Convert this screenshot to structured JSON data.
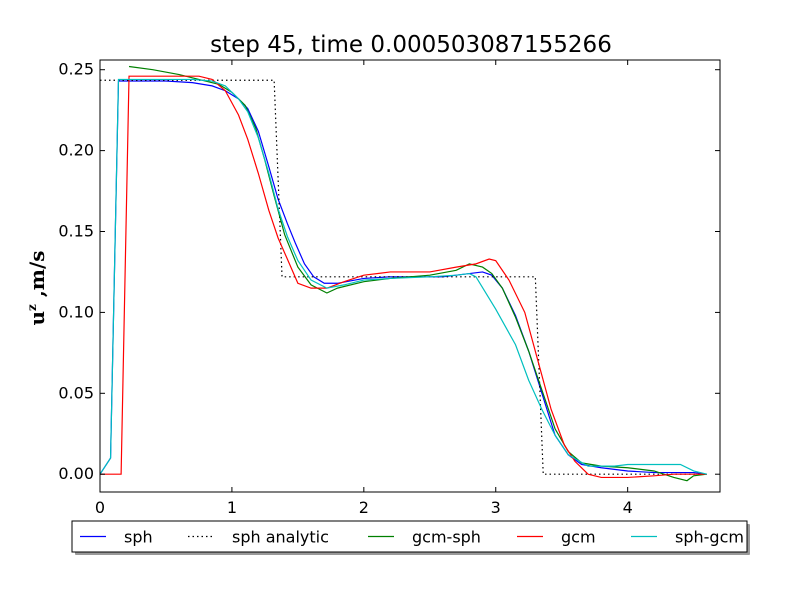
{
  "chart_data": {
    "type": "line",
    "title": "step 45, time 0.000503087155266",
    "xlabel": "",
    "ylabel": "u^z ,m/s",
    "ylabel_main": "u",
    "ylabel_sup": "z",
    "ylabel_rest": " ,m/s",
    "xlim": [
      0,
      4.7
    ],
    "ylim": [
      -0.011,
      0.256
    ],
    "xticks": [
      0,
      1,
      2,
      3,
      4
    ],
    "xtick_labels": [
      "0",
      "1",
      "2",
      "3",
      "4"
    ],
    "yticks": [
      0.0,
      0.05,
      0.1,
      0.15,
      0.2,
      0.25
    ],
    "ytick_labels": [
      "0.00",
      "0.05",
      "0.10",
      "0.15",
      "0.20",
      "0.25"
    ],
    "grid": false,
    "legend_placement": "bottom-center, outside plot",
    "series": [
      {
        "name": "sph",
        "color": "#0000ff",
        "style": "solid",
        "points": [
          [
            0,
            0
          ],
          [
            0.08,
            0.01
          ],
          [
            0.14,
            0.243
          ],
          [
            0.3,
            0.243
          ],
          [
            0.5,
            0.243
          ],
          [
            0.7,
            0.242
          ],
          [
            0.85,
            0.24
          ],
          [
            0.95,
            0.237
          ],
          [
            1.05,
            0.232
          ],
          [
            1.12,
            0.226
          ],
          [
            1.2,
            0.212
          ],
          [
            1.28,
            0.19
          ],
          [
            1.35,
            0.17
          ],
          [
            1.42,
            0.155
          ],
          [
            1.48,
            0.143
          ],
          [
            1.55,
            0.13
          ],
          [
            1.62,
            0.122
          ],
          [
            1.7,
            0.118
          ],
          [
            1.8,
            0.118
          ],
          [
            2.0,
            0.121
          ],
          [
            2.2,
            0.122
          ],
          [
            2.4,
            0.122
          ],
          [
            2.6,
            0.122
          ],
          [
            2.8,
            0.124
          ],
          [
            2.9,
            0.125
          ],
          [
            2.97,
            0.123
          ],
          [
            3.05,
            0.115
          ],
          [
            3.15,
            0.098
          ],
          [
            3.25,
            0.076
          ],
          [
            3.35,
            0.05
          ],
          [
            3.45,
            0.024
          ],
          [
            3.55,
            0.012
          ],
          [
            3.65,
            0.006
          ],
          [
            3.8,
            0.004
          ],
          [
            4.0,
            0.002
          ],
          [
            4.2,
            0.001
          ],
          [
            4.4,
            0.001
          ],
          [
            4.5,
            0.001
          ],
          [
            4.6,
            0.0
          ]
        ]
      },
      {
        "name": "sph analytic",
        "color": "#000000",
        "style": "dotted",
        "points": [
          [
            0,
            0.2435
          ],
          [
            1.32,
            0.2435
          ],
          [
            1.38,
            0.122
          ],
          [
            3.3,
            0.122
          ],
          [
            3.36,
            0.0
          ],
          [
            4.6,
            0.0
          ]
        ]
      },
      {
        "name": "gcm-sph",
        "color": "#008000",
        "style": "solid",
        "points": [
          [
            0.22,
            0.252
          ],
          [
            0.4,
            0.25
          ],
          [
            0.6,
            0.247
          ],
          [
            0.8,
            0.243
          ],
          [
            0.9,
            0.241
          ],
          [
            1.0,
            0.236
          ],
          [
            1.1,
            0.228
          ],
          [
            1.18,
            0.214
          ],
          [
            1.25,
            0.194
          ],
          [
            1.32,
            0.172
          ],
          [
            1.4,
            0.148
          ],
          [
            1.5,
            0.128
          ],
          [
            1.6,
            0.117
          ],
          [
            1.72,
            0.112
          ],
          [
            1.8,
            0.115
          ],
          [
            2.0,
            0.119
          ],
          [
            2.2,
            0.121
          ],
          [
            2.5,
            0.123
          ],
          [
            2.7,
            0.126
          ],
          [
            2.8,
            0.13
          ],
          [
            2.9,
            0.128
          ],
          [
            2.97,
            0.124
          ],
          [
            3.05,
            0.115
          ],
          [
            3.15,
            0.097
          ],
          [
            3.25,
            0.076
          ],
          [
            3.35,
            0.052
          ],
          [
            3.45,
            0.028
          ],
          [
            3.55,
            0.014
          ],
          [
            3.65,
            0.007
          ],
          [
            3.8,
            0.005
          ],
          [
            4.0,
            0.004
          ],
          [
            4.2,
            0.002
          ],
          [
            4.35,
            -0.002
          ],
          [
            4.45,
            -0.004
          ],
          [
            4.5,
            -0.001
          ],
          [
            4.6,
            0.0
          ]
        ]
      },
      {
        "name": "gcm",
        "color": "#ff0000",
        "style": "solid",
        "points": [
          [
            0,
            0
          ],
          [
            0.14,
            0.0
          ],
          [
            0.16,
            0.0
          ],
          [
            0.22,
            0.246
          ],
          [
            0.4,
            0.246
          ],
          [
            0.6,
            0.246
          ],
          [
            0.75,
            0.246
          ],
          [
            0.85,
            0.244
          ],
          [
            0.95,
            0.237
          ],
          [
            1.05,
            0.222
          ],
          [
            1.12,
            0.207
          ],
          [
            1.2,
            0.186
          ],
          [
            1.28,
            0.163
          ],
          [
            1.35,
            0.146
          ],
          [
            1.42,
            0.133
          ],
          [
            1.5,
            0.118
          ],
          [
            1.6,
            0.115
          ],
          [
            1.72,
            0.115
          ],
          [
            1.85,
            0.119
          ],
          [
            2.0,
            0.123
          ],
          [
            2.2,
            0.125
          ],
          [
            2.5,
            0.125
          ],
          [
            2.7,
            0.128
          ],
          [
            2.85,
            0.13
          ],
          [
            2.95,
            0.133
          ],
          [
            3.0,
            0.132
          ],
          [
            3.1,
            0.12
          ],
          [
            3.22,
            0.1
          ],
          [
            3.32,
            0.07
          ],
          [
            3.42,
            0.04
          ],
          [
            3.52,
            0.018
          ],
          [
            3.6,
            0.008
          ],
          [
            3.7,
            0.0
          ],
          [
            3.8,
            -0.002
          ],
          [
            4.0,
            -0.002
          ],
          [
            4.2,
            -0.001
          ],
          [
            4.35,
            0.0
          ],
          [
            4.6,
            0.0
          ]
        ]
      },
      {
        "name": "sph-gcm",
        "color": "#00bfbf",
        "style": "solid",
        "points": [
          [
            0,
            0
          ],
          [
            0.08,
            0.01
          ],
          [
            0.14,
            0.244
          ],
          [
            0.3,
            0.244
          ],
          [
            0.5,
            0.244
          ],
          [
            0.7,
            0.244
          ],
          [
            0.85,
            0.243
          ],
          [
            0.95,
            0.24
          ],
          [
            1.05,
            0.232
          ],
          [
            1.12,
            0.224
          ],
          [
            1.2,
            0.208
          ],
          [
            1.28,
            0.186
          ],
          [
            1.35,
            0.164
          ],
          [
            1.42,
            0.147
          ],
          [
            1.5,
            0.132
          ],
          [
            1.6,
            0.12
          ],
          [
            1.72,
            0.115
          ],
          [
            1.85,
            0.117
          ],
          [
            2.0,
            0.12
          ],
          [
            2.2,
            0.121
          ],
          [
            2.5,
            0.122
          ],
          [
            2.7,
            0.123
          ],
          [
            2.8,
            0.124
          ],
          [
            2.85,
            0.122
          ],
          [
            3.0,
            0.102
          ],
          [
            3.15,
            0.08
          ],
          [
            3.25,
            0.058
          ],
          [
            3.35,
            0.04
          ],
          [
            3.45,
            0.024
          ],
          [
            3.55,
            0.012
          ],
          [
            3.7,
            0.005
          ],
          [
            3.9,
            0.005
          ],
          [
            4.0,
            0.006
          ],
          [
            4.2,
            0.006
          ],
          [
            4.4,
            0.006
          ],
          [
            4.5,
            0.002
          ],
          [
            4.6,
            0.0
          ]
        ]
      }
    ]
  }
}
